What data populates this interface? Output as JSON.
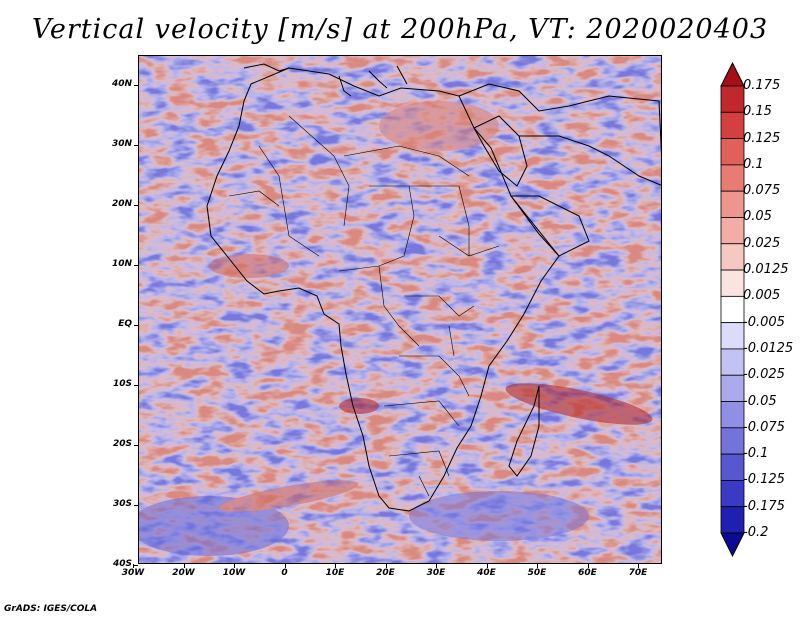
{
  "title": "Vertical velocity [m/s] at 200hPa, VT: 2020020403",
  "footer": "GrADS: IGES/COLA",
  "lat_labels": [
    "40N",
    "30N",
    "20N",
    "10N",
    "EQ",
    "10S",
    "20S",
    "30S",
    "40S"
  ],
  "lon_labels": [
    "30W",
    "20W",
    "10W",
    "0",
    "10E",
    "20E",
    "30E",
    "40E",
    "50E",
    "60E",
    "70E"
  ],
  "colorbar": {
    "labels": [
      "0.175",
      "0.15",
      "0.125",
      "0.1",
      "0.075",
      "0.05",
      "0.025",
      "0.0125",
      "0.005",
      "-0.005",
      "-0.0125",
      "-0.025",
      "-0.05",
      "-0.075",
      "-0.1",
      "-0.125",
      "-0.175",
      "-0.2"
    ],
    "colors": [
      "#a50f15",
      "#c0282d",
      "#d4403f",
      "#e0605a",
      "#e87c74",
      "#ee968d",
      "#f2aea6",
      "#f6c8c2",
      "#fbe4e0",
      "#ffffff",
      "#dcdcfa",
      "#c3c3f3",
      "#aaaaec",
      "#8f8fe4",
      "#7373da",
      "#5757cf",
      "#3a3ac4",
      "#2020b0",
      "#0a0a96"
    ]
  }
}
